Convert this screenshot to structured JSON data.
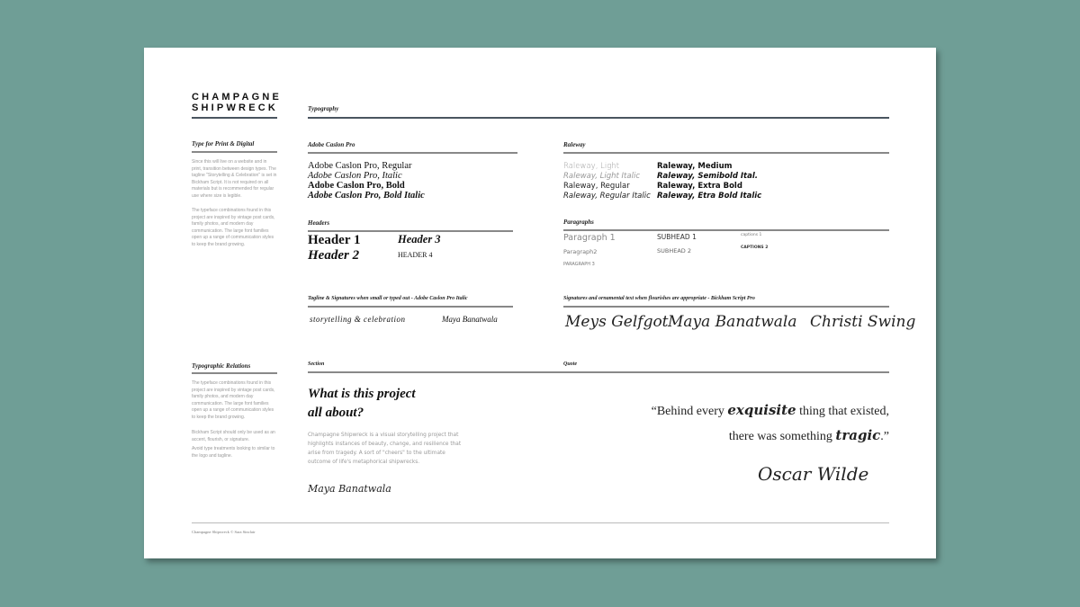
{
  "logo": {
    "line1": "CHAMPAGNE",
    "line2": "SHIPWRECK"
  },
  "page_title": "Typography",
  "sidebar": {
    "type_heading": "Type for Print & Digital",
    "type_p1": "Since this will live on a website and in print, transition between design types. The tagline \"Storytelling & Celebration\" is set in Bickham Script. It is not required on all materials but is recommended for regular use where size is legible.",
    "type_p2": "The typeface combinations found in this project are inspired by vintage post cards, family photos, and modern day communication. The large font families open up a range of communication styles to keep the brand growing.",
    "relations_heading": "Typographic Relations",
    "rel_p1": "The typeface combinations found in this project are inspired by vintage post cards, family photos, and modern day communication. The large font families open up a range of communication styles to keep the brand growing.",
    "rel_p2": "Bickham Script should only be used as an accent, flourish, or signature.",
    "rel_p3": "Avoid type treatments looking to similar to the logo and tagline."
  },
  "caslon": {
    "heading": "Adobe Caslon Pro",
    "samples": [
      "Adobe Caslon Pro, Regular",
      "Adobe Caslon Pro, Italic",
      "Adobe Caslon Pro, Bold",
      "Adobe Caslon Pro, Bold Italic"
    ]
  },
  "raleway": {
    "heading": "Raleway",
    "left": [
      "Raleway, Light",
      "Raleway, Light Italic",
      "Raleway, Regular",
      "Raleway, Regular Italic"
    ],
    "right": [
      "Raleway, Medium",
      "Raleway, Semibold Ital.",
      "Raleway, Extra Bold",
      "Raleway, Etra Bold Italic"
    ]
  },
  "headers": {
    "heading": "Headers",
    "h1": "Header 1",
    "h2": "Header 2",
    "h3": "Header 3",
    "h4": "HEADER 4"
  },
  "paragraphs": {
    "heading": "Paragraphs",
    "p1": "Paragraph 1",
    "p2": "Paragraph2",
    "p3": "PARAGRAPH 3",
    "s1": "SUBHEAD 1",
    "s2": "SUBHEAD 2",
    "c1": "captions 1",
    "c2": "CAPTIONS 2"
  },
  "tagline": {
    "heading": "Tagline & Signatures when small or typed out - Adobe Caslon Pro Italic",
    "text": "storytelling & celebration",
    "name": "Maya Banatwala"
  },
  "signatures": {
    "heading": "Signatures and ornamental text when flourishes are appropriate - Bickham Script Pro",
    "names": [
      "Meys Gelfgot",
      "Maya Banatwala",
      "Christi Swing"
    ]
  },
  "section": {
    "heading": "Section",
    "title_line1": "What is this project",
    "title_line2": "all about?",
    "body": "Champagne Shipwreck is a  visual storytelling project that highlights instances of beauty, change, and resilience that arise from tragedy. A sort of \"cheers\" to the ultimate outcome of life's metaphorical shipwrecks.",
    "signature": "Maya Banatwala"
  },
  "quote": {
    "heading": "Quote",
    "open": "“Behind every ",
    "word1": "exquisite",
    "mid": " thing that existed,",
    "line2a": "there was something ",
    "word2": "tragic",
    "close": ".”",
    "author": "Oscar Wilde"
  },
  "footer": "Champagne Shipwreck © Sara Sinclair"
}
